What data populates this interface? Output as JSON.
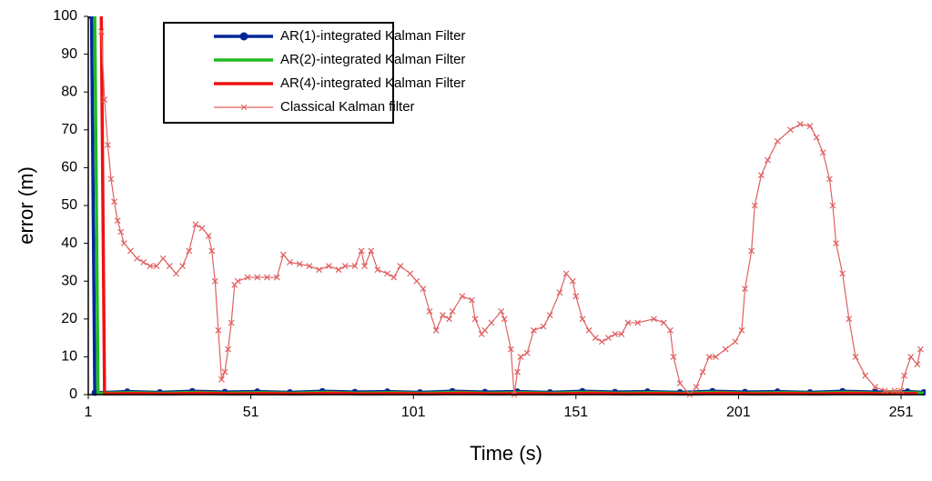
{
  "chart_data": {
    "type": "line",
    "x_label": "Time (s)",
    "y_label": "error (m)",
    "xlim": [
      1,
      258
    ],
    "ylim": [
      0,
      100
    ],
    "xticks": [
      1,
      51,
      101,
      151,
      201,
      251
    ],
    "yticks": [
      0,
      10,
      20,
      30,
      40,
      50,
      60,
      70,
      80,
      90,
      100
    ],
    "grid": false,
    "legend": "top",
    "series": [
      {
        "name": "AR(1)-integrated Kalman Filter",
        "color": "#002699",
        "marker": "circle",
        "x": [
          2,
          3,
          13,
          23,
          33,
          43,
          53,
          63,
          73,
          83,
          93,
          103,
          113,
          123,
          133,
          143,
          153,
          163,
          173,
          183,
          193,
          203,
          213,
          223,
          233,
          243,
          253,
          258
        ],
        "values": [
          100,
          0.5,
          0.8,
          0.6,
          0.9,
          0.7,
          0.8,
          0.6,
          0.9,
          0.7,
          0.8,
          0.6,
          0.9,
          0.7,
          0.8,
          0.6,
          0.9,
          0.7,
          0.8,
          0.6,
          0.9,
          0.7,
          0.8,
          0.6,
          0.9,
          0.7,
          0.8,
          0.6
        ]
      },
      {
        "name": "AR(2)-integrated Kalman Filter",
        "color": "#22bb22",
        "marker": "none",
        "x": [
          3,
          4,
          14,
          24,
          34,
          44,
          54,
          64,
          74,
          84,
          94,
          104,
          114,
          124,
          134,
          144,
          154,
          164,
          174,
          184,
          194,
          204,
          214,
          224,
          234,
          244,
          254,
          258
        ],
        "values": [
          100,
          0.4,
          0.5,
          0.4,
          0.6,
          0.4,
          0.5,
          0.4,
          0.6,
          0.4,
          0.5,
          0.4,
          0.6,
          0.4,
          0.5,
          0.4,
          0.6,
          0.4,
          0.5,
          0.4,
          0.6,
          0.4,
          0.5,
          0.4,
          0.6,
          0.4,
          0.5,
          0.4
        ]
      },
      {
        "name": "AR(4)-integrated Kalman Filter",
        "color": "#ee1111",
        "marker": "none",
        "x": [
          5,
          6,
          16,
          26,
          36,
          46,
          56,
          66,
          76,
          86,
          96,
          106,
          116,
          126,
          136,
          146,
          156,
          166,
          176,
          186,
          196,
          206,
          216,
          226,
          236,
          246,
          256
        ],
        "values": [
          100,
          0.2,
          0.3,
          0.2,
          0.4,
          0.2,
          0.3,
          0.2,
          0.4,
          0.2,
          0.3,
          0.2,
          0.4,
          0.2,
          0.3,
          0.2,
          0.4,
          0.2,
          0.3,
          0.2,
          0.4,
          0.2,
          0.3,
          0.2,
          0.4,
          0.2,
          0.3
        ]
      },
      {
        "name": "Classical Kalman filter",
        "color": "#e06060",
        "marker": "x",
        "x": [
          5,
          6,
          7,
          8,
          9,
          10,
          11,
          12,
          14,
          16,
          18,
          20,
          22,
          24,
          26,
          28,
          30,
          32,
          34,
          36,
          38,
          39,
          40,
          41,
          42,
          43,
          44,
          45,
          46,
          47,
          50,
          53,
          56,
          59,
          61,
          63,
          66,
          69,
          72,
          75,
          78,
          80,
          83,
          85,
          86,
          88,
          90,
          93,
          95,
          97,
          100,
          102,
          104,
          106,
          108,
          110,
          112,
          113,
          116,
          119,
          120,
          122,
          123,
          125,
          128,
          129,
          131,
          132,
          133,
          134,
          136,
          138,
          141,
          143,
          146,
          148,
          150,
          151,
          153,
          155,
          157,
          159,
          161,
          163,
          165,
          167,
          170,
          175,
          178,
          180,
          181,
          183,
          186,
          188,
          190,
          192,
          194,
          197,
          200,
          202,
          203,
          205,
          206,
          208,
          210,
          213,
          217,
          220,
          223,
          225,
          227,
          229,
          230,
          231,
          233,
          235,
          237,
          240,
          243,
          246,
          249,
          251,
          252,
          254,
          256,
          257
        ],
        "values": [
          96,
          78,
          66,
          57,
          51,
          46,
          43,
          40,
          38,
          36,
          35,
          34,
          34,
          36,
          34,
          32,
          34,
          38,
          45,
          44,
          42,
          38,
          30,
          17,
          4,
          6,
          12,
          19,
          29,
          30,
          31,
          31,
          31,
          31,
          37,
          35,
          34.5,
          34,
          33,
          34,
          33,
          34,
          34,
          38,
          34,
          38,
          33,
          32,
          31,
          34,
          32,
          30,
          28,
          22,
          17,
          21,
          20,
          22,
          26,
          25,
          20,
          16,
          17,
          19,
          22,
          20,
          12,
          0,
          6,
          10,
          11,
          17,
          18,
          21,
          27,
          32,
          30,
          26,
          20,
          17,
          15,
          14,
          15,
          16,
          16,
          19,
          19,
          20,
          19,
          17,
          10,
          3,
          0,
          2,
          6,
          10,
          10,
          12,
          14,
          17,
          28,
          38,
          50,
          58,
          62,
          67,
          70,
          71.5,
          71,
          68,
          64,
          57,
          50,
          40,
          32,
          20,
          10,
          5,
          2,
          1,
          1,
          1,
          5,
          10,
          8,
          12
        ]
      }
    ]
  }
}
